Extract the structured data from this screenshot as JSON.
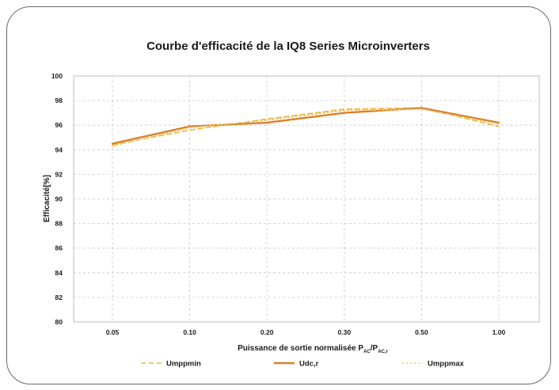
{
  "chart_data": {
    "type": "line",
    "title": "Courbe d'efficacité de la IQ8 Series Microinverters",
    "xlabel_main": "Puissance de sortie normalisée P",
    "xlabel_sub1": "AC",
    "xlabel_mid": "/P",
    "xlabel_sub2": "AC,r",
    "ylabel": "Efficacité[%]",
    "categories": [
      "0.05",
      "0.10",
      "0.20",
      "0.30",
      "0.50",
      "1.00"
    ],
    "ylim": [
      80,
      100
    ],
    "yticks": [
      "100",
      "98",
      "96",
      "94",
      "92",
      "90",
      "88",
      "86",
      "84",
      "82",
      "80"
    ],
    "grid": true,
    "legend_position": "bottom",
    "series": [
      {
        "name": "Umppmin",
        "values": [
          94.4,
          95.6,
          96.5,
          97.3,
          97.4,
          95.9
        ],
        "color": "#f2b53a",
        "dash": "dashed"
      },
      {
        "name": "Udc,r",
        "values": [
          94.5,
          95.9,
          96.2,
          97.0,
          97.4,
          96.2
        ],
        "color": "#d9822b",
        "dash": "solid"
      },
      {
        "name": "Umppmax",
        "values": [
          94.3,
          95.8,
          96.4,
          97.2,
          97.3,
          96.1
        ],
        "color": "#e6c97a",
        "dash": "dotted"
      }
    ]
  }
}
